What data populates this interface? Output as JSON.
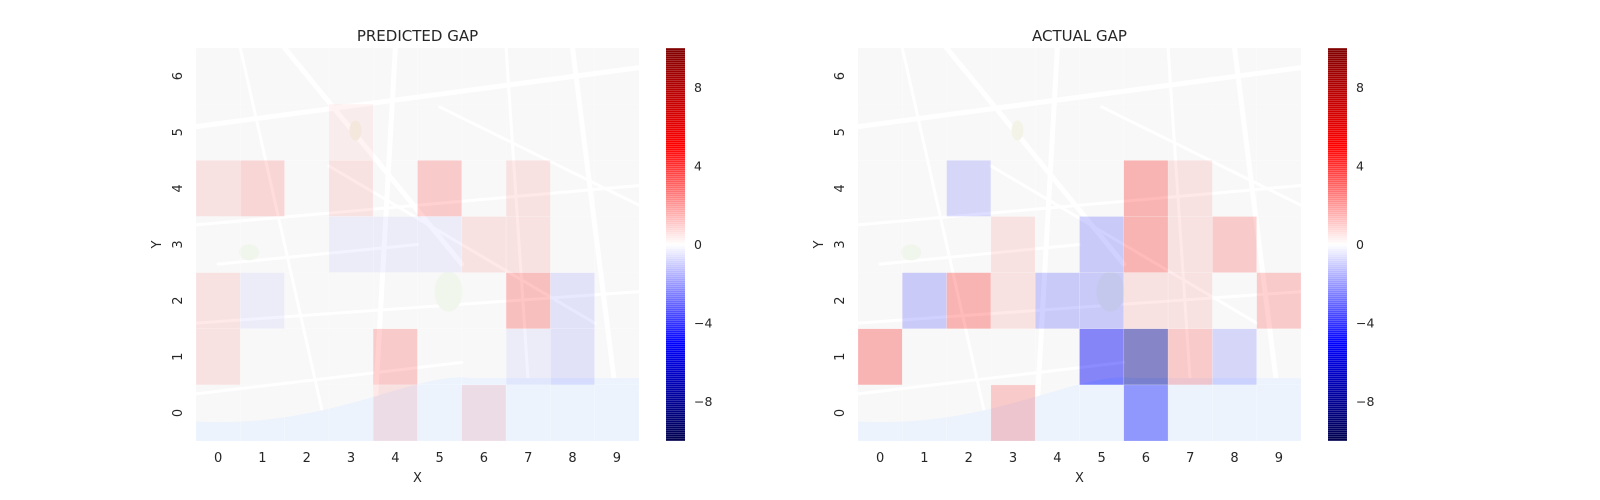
{
  "chart_data": [
    {
      "type": "heatmap",
      "title": "PREDICTED GAP",
      "xlabel": "X",
      "ylabel": "Y",
      "x_ticks": [
        "0",
        "1",
        "2",
        "3",
        "4",
        "5",
        "6",
        "7",
        "8",
        "9"
      ],
      "y_ticks": [
        "0",
        "1",
        "2",
        "3",
        "4",
        "5",
        "6"
      ],
      "vmin": -10,
      "vmax": 10,
      "colorbar_ticks": [
        -8,
        -4,
        0,
        4,
        8
      ],
      "colorbar_tick_labels": [
        "−8",
        "−4",
        "0",
        "4",
        "8"
      ],
      "colormap": "seismic",
      "grid": [
        [
          0,
          0,
          0,
          0,
          1,
          0,
          1,
          0,
          0,
          0
        ],
        [
          1,
          0,
          0,
          0,
          2,
          0,
          0,
          -0.5,
          -1,
          0
        ],
        [
          1,
          -0.5,
          0,
          0,
          0,
          0,
          0,
          2.5,
          -1,
          0
        ],
        [
          0,
          0,
          0,
          -0.5,
          -0.5,
          -0.5,
          1,
          1,
          0,
          0
        ],
        [
          1,
          1.5,
          0,
          1,
          0,
          2,
          0,
          1,
          0,
          0
        ],
        [
          0,
          0,
          0,
          0.5,
          0,
          0,
          0,
          0,
          0,
          0
        ],
        [
          0,
          0,
          0,
          0,
          0,
          0,
          0,
          0,
          0,
          0
        ]
      ]
    },
    {
      "type": "heatmap",
      "title": "ACTUAL GAP",
      "xlabel": "X",
      "ylabel": "Y",
      "x_ticks": [
        "0",
        "1",
        "2",
        "3",
        "4",
        "5",
        "6",
        "7",
        "8",
        "9"
      ],
      "y_ticks": [
        "0",
        "1",
        "2",
        "3",
        "4",
        "5",
        "6"
      ],
      "vmin": -10,
      "vmax": 10,
      "colorbar_ticks": [
        -8,
        -4,
        0,
        4,
        8
      ],
      "colorbar_tick_labels": [
        "−8",
        "−4",
        "0",
        "4",
        "8"
      ],
      "colormap": "seismic",
      "grid": [
        [
          0,
          0,
          0,
          2,
          0,
          0,
          -4,
          0,
          0,
          0
        ],
        [
          3,
          0,
          0,
          0,
          0,
          -5,
          -8,
          2,
          -1.5,
          0
        ],
        [
          0,
          -2,
          3,
          1,
          -2,
          -2,
          1,
          1,
          0,
          2
        ],
        [
          0,
          0,
          0,
          1,
          0,
          -2,
          3,
          1,
          2,
          0
        ],
        [
          0,
          0,
          -1.5,
          0,
          0,
          0,
          3,
          1,
          0,
          0
        ],
        [
          0,
          0,
          0,
          0,
          0,
          0,
          0,
          0,
          0,
          0
        ],
        [
          0,
          0,
          0,
          0,
          0,
          0,
          0,
          0,
          0,
          0
        ]
      ]
    }
  ]
}
